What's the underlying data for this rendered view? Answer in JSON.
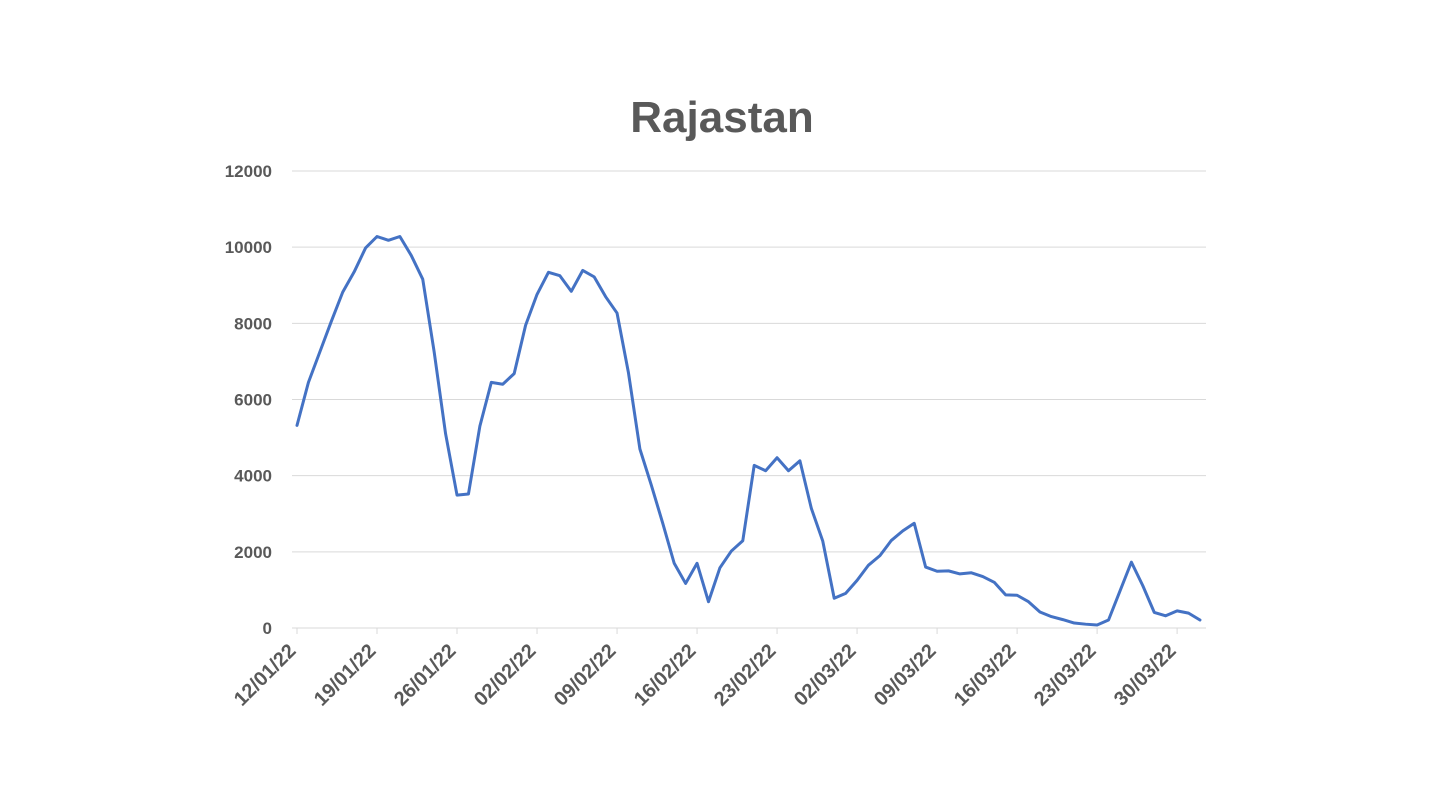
{
  "chart_data": {
    "type": "line",
    "title": "Rajastan",
    "xlabel": "",
    "ylabel": "",
    "ylim": [
      0,
      12000
    ],
    "yticks": [
      0,
      2000,
      4000,
      6000,
      8000,
      10000,
      12000
    ],
    "grid": true,
    "legend": "none",
    "x_tick_labels": [
      "12/01/22",
      "19/01/22",
      "26/01/22",
      "02/02/22",
      "09/02/22",
      "16/02/22",
      "23/02/22",
      "02/03/22",
      "09/03/22",
      "16/03/22",
      "23/03/22",
      "30/03/22"
    ],
    "x": [
      "12/01/22",
      "13/01/22",
      "14/01/22",
      "15/01/22",
      "16/01/22",
      "17/01/22",
      "18/01/22",
      "19/01/22",
      "20/01/22",
      "21/01/22",
      "22/01/22",
      "23/01/22",
      "24/01/22",
      "25/01/22",
      "26/01/22",
      "27/01/22",
      "28/01/22",
      "29/01/22",
      "30/01/22",
      "31/01/22",
      "01/02/22",
      "02/02/22",
      "03/02/22",
      "04/02/22",
      "05/02/22",
      "06/02/22",
      "07/02/22",
      "08/02/22",
      "09/02/22",
      "10/02/22",
      "11/02/22",
      "12/02/22",
      "13/02/22",
      "14/02/22",
      "15/02/22",
      "16/02/22",
      "17/02/22",
      "18/02/22",
      "19/02/22",
      "20/02/22",
      "21/02/22",
      "22/02/22",
      "23/02/22",
      "24/02/22",
      "25/02/22",
      "26/02/22",
      "27/02/22",
      "28/02/22",
      "01/03/22",
      "02/03/22",
      "03/03/22",
      "04/03/22",
      "05/03/22",
      "06/03/22",
      "07/03/22",
      "08/03/22",
      "09/03/22",
      "10/03/22",
      "11/03/22",
      "12/03/22",
      "13/03/22",
      "14/03/22",
      "15/03/22",
      "16/03/22",
      "17/03/22",
      "18/03/22",
      "19/03/22",
      "20/03/22",
      "21/03/22",
      "22/03/22",
      "23/03/22",
      "24/03/22",
      "25/03/22",
      "26/03/22",
      "27/03/22",
      "28/03/22",
      "29/03/22",
      "30/03/22",
      "31/03/22",
      "01/04/22"
    ],
    "series": [
      {
        "color": "#4472c4",
        "values": [
          5320,
          6450,
          7250,
          8050,
          8820,
          9350,
          9980,
          10280,
          10180,
          10280,
          9780,
          9160,
          7250,
          5100,
          3490,
          3520,
          5300,
          6450,
          6400,
          6680,
          7950,
          8760,
          9340,
          9250,
          8840,
          9390,
          9220,
          8700,
          8270,
          6700,
          4700,
          3750,
          2750,
          1700,
          1170,
          1700,
          690,
          1580,
          2020,
          2290,
          4270,
          4130,
          4470,
          4130,
          4390,
          3140,
          2280,
          780,
          910,
          1250,
          1650,
          1900,
          2300,
          2550,
          2750,
          1600,
          1490,
          1500,
          1420,
          1450,
          1350,
          1200,
          870,
          860,
          690,
          420,
          300,
          220,
          130,
          100,
          80,
          210,
          970,
          1730,
          1110,
          410,
          320,
          450,
          390,
          210
        ]
      }
    ]
  }
}
